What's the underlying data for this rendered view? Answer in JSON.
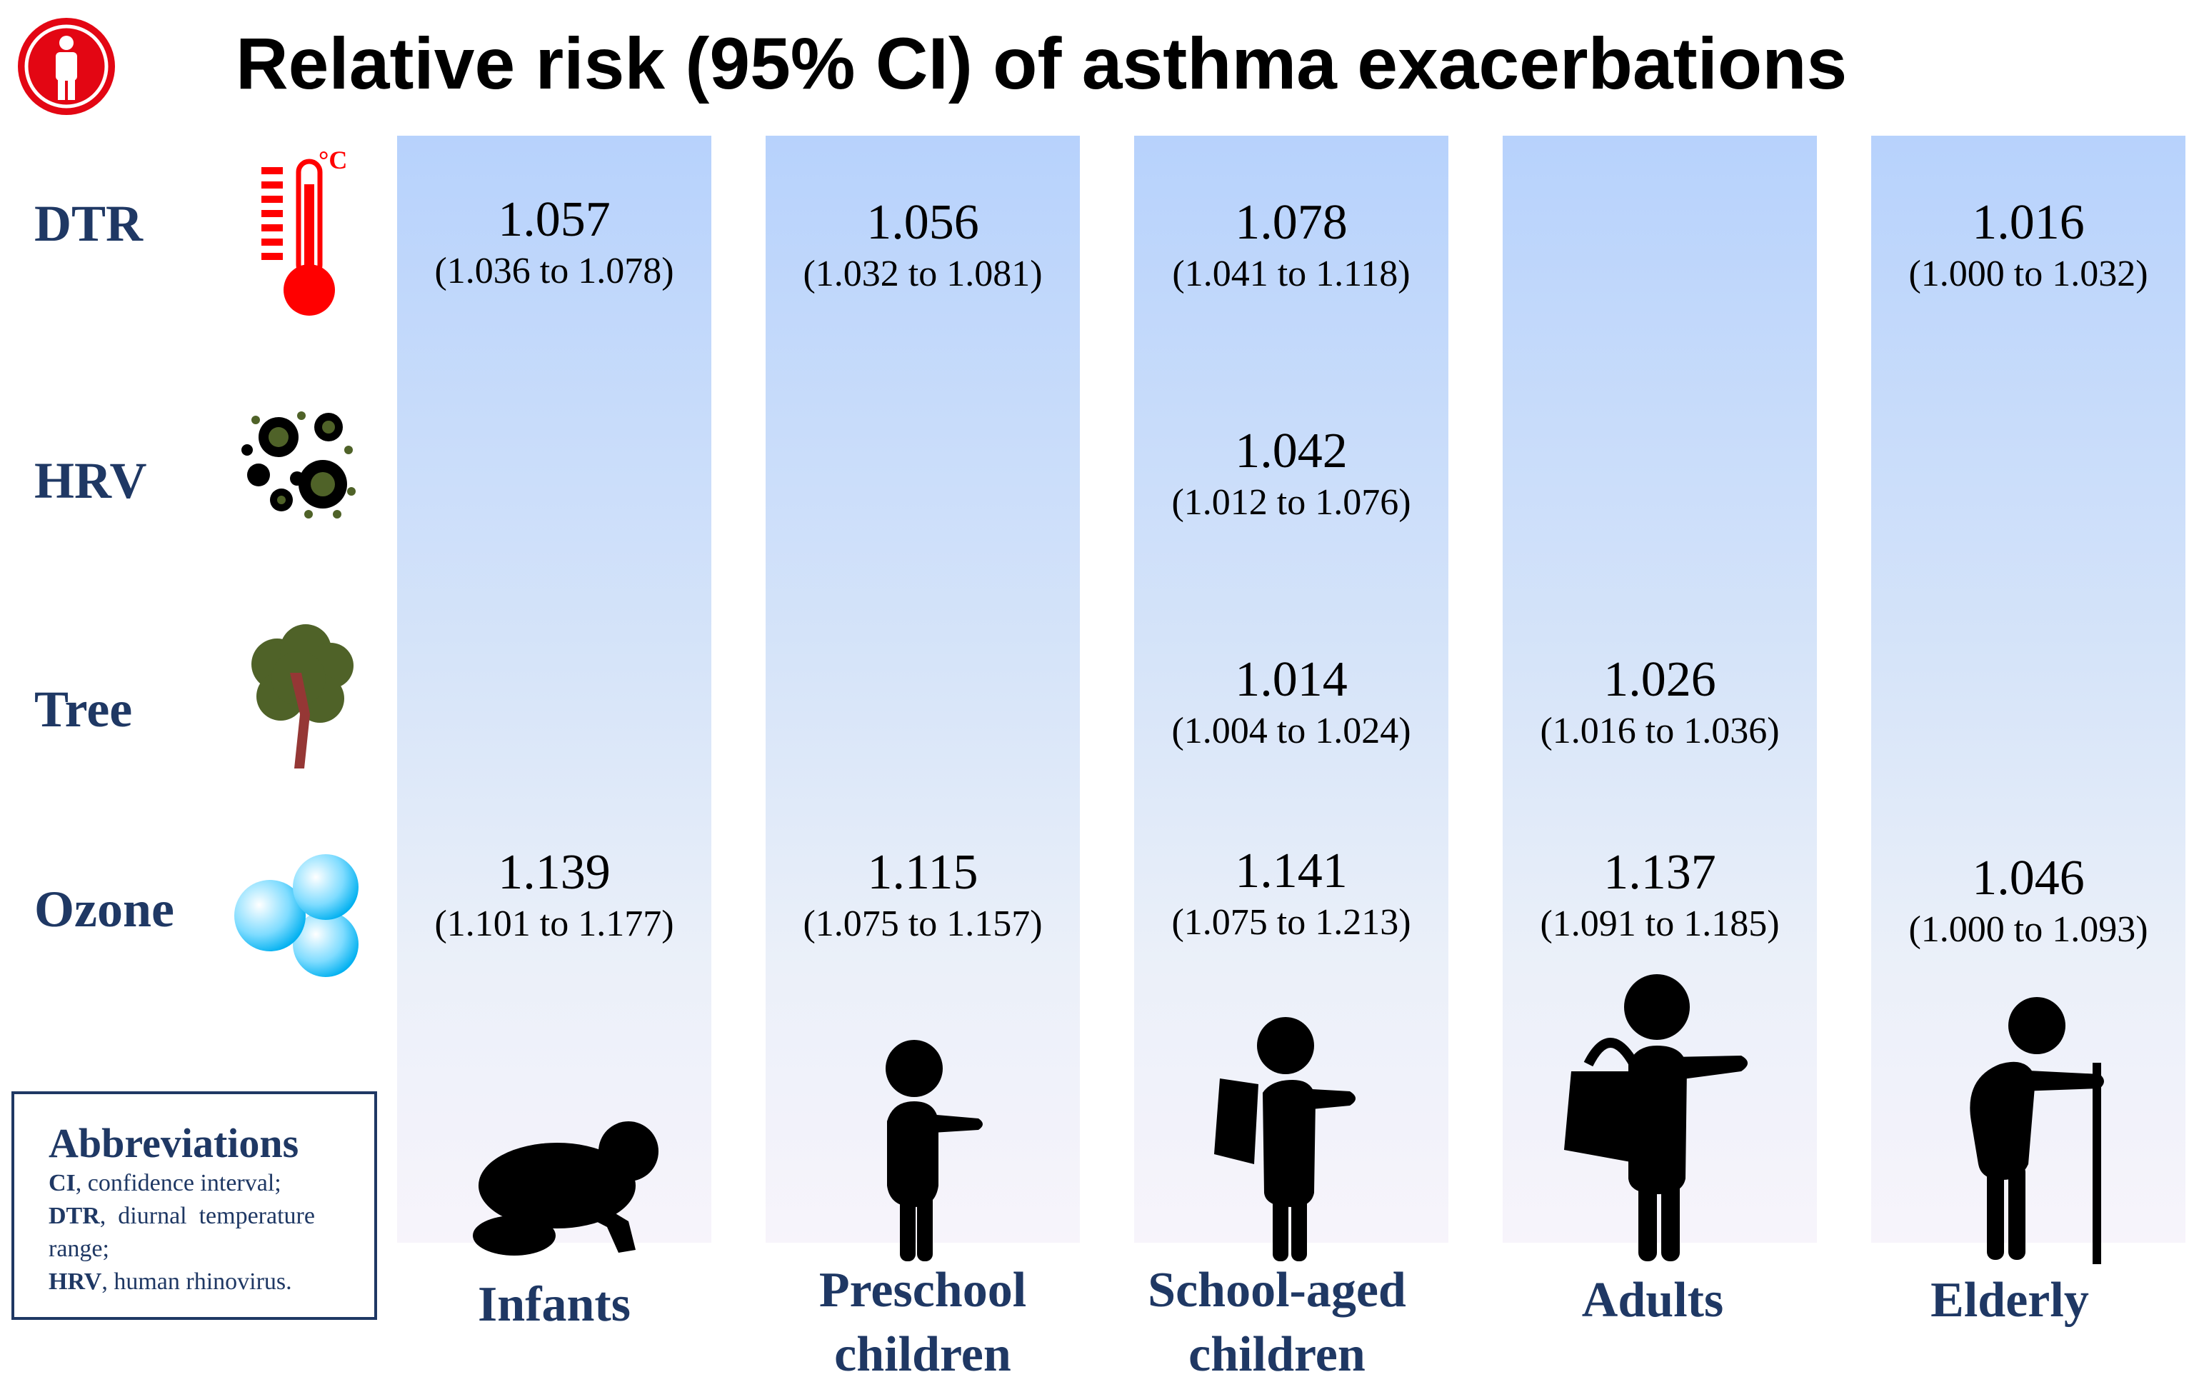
{
  "title": "Relative risk (95% CI) of asthma exacerbations",
  "rows": [
    {
      "label": "DTR",
      "icon": "thermometer-icon",
      "icon_text": "°C"
    },
    {
      "label": "HRV",
      "icon": "virus-icon"
    },
    {
      "label": "Tree",
      "icon": "tree-icon"
    },
    {
      "label": "Ozone",
      "icon": "ozone-icon"
    }
  ],
  "groups": [
    {
      "label_line1": "Infants",
      "label_line2": "",
      "figure": "crawling-infant-icon"
    },
    {
      "label_line1": "Preschool",
      "label_line2": "children",
      "figure": "preschool-child-icon"
    },
    {
      "label_line1": "School-aged",
      "label_line2": "children",
      "figure": "schoolchild-backpack-icon"
    },
    {
      "label_line1": "Adults",
      "label_line2": "",
      "figure": "adult-bag-icon"
    },
    {
      "label_line1": "Elderly",
      "label_line2": "",
      "figure": "elderly-cane-icon"
    }
  ],
  "values": {
    "dtr": [
      {
        "rr": "1.057",
        "ci": "(1.036 to 1.078)"
      },
      {
        "rr": "1.056",
        "ci": "(1.032 to 1.081)"
      },
      {
        "rr": "1.078",
        "ci": "(1.041 to 1.118)"
      },
      null,
      {
        "rr": "1.016",
        "ci": "(1.000 to 1.032)"
      }
    ],
    "hrv": [
      null,
      null,
      {
        "rr": "1.042",
        "ci": "(1.012 to 1.076)"
      },
      null,
      null
    ],
    "tree": [
      null,
      null,
      {
        "rr": "1.014",
        "ci": "(1.004 to 1.024)"
      },
      {
        "rr": "1.026",
        "ci": "(1.016 to 1.036)"
      },
      null
    ],
    "ozone": [
      {
        "rr": "1.139",
        "ci": "(1.101 to 1.177)"
      },
      {
        "rr": "1.115",
        "ci": "(1.075 to 1.157)"
      },
      {
        "rr": "1.141",
        "ci": "(1.075 to 1.213)"
      },
      {
        "rr": "1.137",
        "ci": "(1.091 to 1.185)"
      },
      {
        "rr": "1.046",
        "ci": "(1.000 to 1.093)"
      }
    ]
  },
  "abbreviations": {
    "title": "Abbreviations",
    "items": [
      {
        "term": "CI",
        "text": ", confidence interval;"
      },
      {
        "term": "DTR",
        "text": ",  diurnal  temperature"
      },
      {
        "term": "",
        "text": "range;"
      },
      {
        "term": "HRV",
        "text": ", human rhinovirus."
      }
    ]
  },
  "colors": {
    "label_navy": "#1f3864",
    "column_top": "#b7d2fc",
    "column_bottom": "#f7f4fb",
    "logo_red": "#e30613",
    "thermo_red": "#ff0000",
    "virus_green": "#4f6228",
    "tree_green": "#4f6228",
    "ozone_cyan": "#00b0f0"
  }
}
